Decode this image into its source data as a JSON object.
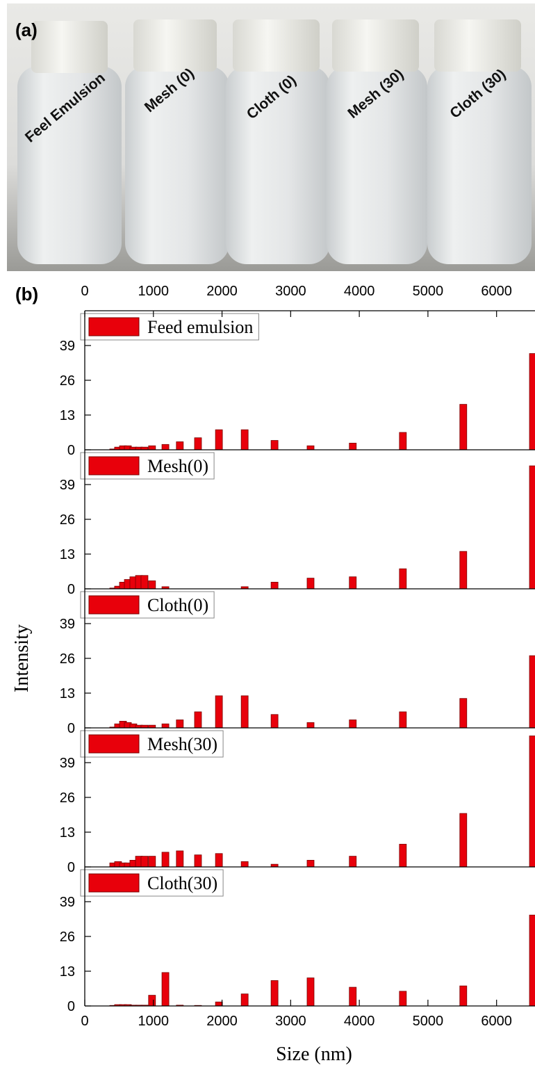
{
  "panel_a": {
    "label": "(a)",
    "bottle_labels": [
      "Feel Emulsion",
      "Mesh (0)",
      "Cloth (0)",
      "Mesh (30)",
      "Cloth (30)"
    ]
  },
  "panel_b": {
    "label": "(b)"
  },
  "chart_data": {
    "type": "bar",
    "xlabel": "Size (nm)",
    "ylabel": "Intensity",
    "color": "#e8000b",
    "xlim": [
      0,
      6560
    ],
    "xticks": [
      0,
      1000,
      2000,
      3000,
      4000,
      5000,
      6000
    ],
    "ylim": [
      0,
      52
    ],
    "yticks": [
      0,
      13,
      26,
      39
    ],
    "x": [
      415,
      485,
      557,
      628,
      708,
      790,
      870,
      980,
      1175,
      1385,
      1650,
      1955,
      2330,
      2765,
      3290,
      3905,
      4635,
      5515,
      6530
    ],
    "series": [
      {
        "name": "Feed emulsion",
        "values": [
          0.3,
          1,
          1.5,
          1.5,
          1,
          1,
          1,
          1.5,
          2,
          3,
          4.5,
          7.5,
          7.5,
          3.5,
          1.5,
          2.5,
          6.5,
          17,
          36
        ]
      },
      {
        "name": "Mesh(0)",
        "values": [
          0.3,
          1,
          2.5,
          3.5,
          4.5,
          5,
          5,
          3,
          0.8,
          0,
          0,
          0,
          0.8,
          2.5,
          4,
          4.5,
          7.5,
          14,
          46
        ]
      },
      {
        "name": "Cloth(0)",
        "values": [
          0.3,
          1.5,
          2.5,
          2,
          1.5,
          1,
          1,
          1,
          1.5,
          3,
          6,
          12,
          12,
          5,
          2,
          3,
          6,
          11,
          27
        ]
      },
      {
        "name": "Mesh(30)",
        "values": [
          1.5,
          2,
          1.5,
          1.5,
          2.5,
          4,
          4,
          4,
          5.5,
          6,
          4.5,
          5,
          2,
          1,
          2.5,
          4,
          8.5,
          20,
          49
        ]
      },
      {
        "name": "Cloth(30)",
        "values": [
          0.2,
          0.5,
          0.5,
          0.5,
          0.3,
          0.3,
          0.3,
          4,
          12.5,
          0.3,
          0.2,
          1.5,
          4.5,
          9.5,
          10.5,
          7,
          5.5,
          7.5,
          34
        ]
      }
    ]
  }
}
